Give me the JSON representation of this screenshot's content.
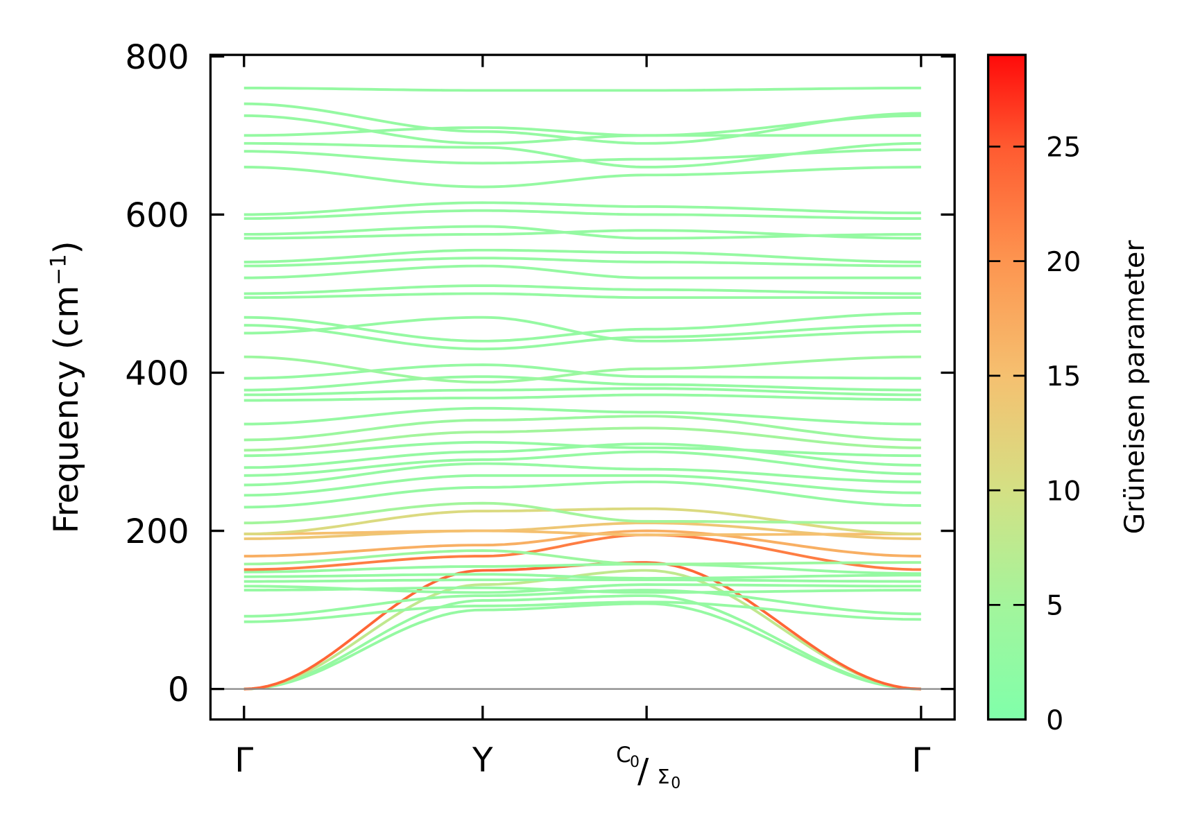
{
  "chart_data": {
    "type": "line",
    "title": "",
    "ylabel": {
      "main": "Frequency (cm",
      "sup": "−1",
      "close": ")"
    },
    "xlabel": "",
    "ylim": [
      -38,
      842
    ],
    "yticks": [
      0,
      200,
      400,
      600,
      800
    ],
    "ytick_labels": [
      "0",
      "200",
      "400",
      "600",
      "800"
    ],
    "xticks": [
      {
        "label": "Γ",
        "pos": 0
      },
      {
        "label": "Y",
        "pos": 1
      },
      {
        "label": "C0/Σ0",
        "main1": "C",
        "sub1": "0",
        "slash": "/",
        "main2": "Σ",
        "sub2": "0",
        "pos": 2
      },
      {
        "label": "Γ",
        "pos": 3
      }
    ],
    "grid": false,
    "zero_line": 0,
    "colorbar": {
      "label": "Grüneisen parameter",
      "range": [
        0,
        29
      ],
      "ticks": [
        0,
        5,
        10,
        15,
        20,
        25
      ],
      "tick_labels": [
        "0",
        "5",
        "10",
        "15",
        "20",
        "25"
      ],
      "colors": [
        "#80ffaa",
        "#a3f59c",
        "#d4e084",
        "#f5c070",
        "#fd9550",
        "#ff5a30",
        "#ff0a0a"
      ],
      "stops": [
        0,
        5,
        10,
        15,
        20,
        25,
        29
      ]
    },
    "bands_description": "frequency (cm-1) at Γ, Y, C0/Σ0, Γ with Grüneisen parameter",
    "series": [
      {
        "f": [
          0,
          100,
          108,
          0
        ],
        "g": 3
      },
      {
        "f": [
          0,
          112,
          118,
          0
        ],
        "g": 3
      },
      {
        "f": [
          0,
          132,
          150,
          0
        ],
        "g": 8
      },
      {
        "f": [
          0,
          150,
          160,
          0
        ],
        "g": 24
      },
      {
        "f": [
          85,
          105,
          110,
          88
        ],
        "g": 3
      },
      {
        "f": [
          92,
          118,
          125,
          95
        ],
        "g": 3
      },
      {
        "f": [
          125,
          128,
          122,
          125
        ],
        "g": 3
      },
      {
        "f": [
          130,
          122,
          132,
          130
        ],
        "g": 3
      },
      {
        "f": [
          136,
          138,
          138,
          136
        ],
        "g": 3
      },
      {
        "f": [
          142,
          145,
          140,
          144
        ],
        "g": 3
      },
      {
        "f": [
          148,
          155,
          158,
          146
        ],
        "g": 3
      },
      {
        "f": [
          151,
          168,
          195,
          151
        ],
        "g": 22
      },
      {
        "f": [
          158,
          175,
          158,
          160
        ],
        "g": 4
      },
      {
        "f": [
          168,
          182,
          200,
          168
        ],
        "g": 17
      },
      {
        "f": [
          190,
          200,
          210,
          190
        ],
        "g": 14
      },
      {
        "f": [
          196,
          200,
          195,
          196
        ],
        "g": 15
      },
      {
        "f": [
          196,
          225,
          228,
          196
        ],
        "g": 11
      },
      {
        "f": [
          210,
          235,
          212,
          210
        ],
        "g": 5
      },
      {
        "f": [
          230,
          255,
          262,
          232
        ],
        "g": 3
      },
      {
        "f": [
          245,
          270,
          270,
          248
        ],
        "g": 3
      },
      {
        "f": [
          258,
          285,
          278,
          262
        ],
        "g": 3
      },
      {
        "f": [
          270,
          290,
          300,
          272
        ],
        "g": 3
      },
      {
        "f": [
          280,
          300,
          310,
          283
        ],
        "g": 3
      },
      {
        "f": [
          295,
          312,
          305,
          295
        ],
        "g": 3
      },
      {
        "f": [
          302,
          325,
          330,
          305
        ],
        "g": 5
      },
      {
        "f": [
          315,
          340,
          345,
          315
        ],
        "g": 4
      },
      {
        "f": [
          335,
          355,
          350,
          335
        ],
        "g": 3
      },
      {
        "f": [
          365,
          368,
          372,
          366
        ],
        "g": 3
      },
      {
        "f": [
          372,
          378,
          380,
          372
        ],
        "g": 3
      },
      {
        "f": [
          378,
          395,
          385,
          378
        ],
        "g": 3
      },
      {
        "f": [
          393,
          410,
          395,
          393
        ],
        "g": 3
      },
      {
        "f": [
          420,
          388,
          405,
          420
        ],
        "g": 4
      },
      {
        "f": [
          450,
          470,
          440,
          452
        ],
        "g": 3
      },
      {
        "f": [
          460,
          430,
          445,
          460
        ],
        "g": 3
      },
      {
        "f": [
          470,
          440,
          455,
          475
        ],
        "g": 3
      },
      {
        "f": [
          495,
          500,
          495,
          495
        ],
        "g": 3
      },
      {
        "f": [
          500,
          510,
          505,
          500
        ],
        "g": 3
      },
      {
        "f": [
          520,
          535,
          520,
          520
        ],
        "g": 3
      },
      {
        "f": [
          535,
          545,
          540,
          535
        ],
        "g": 3
      },
      {
        "f": [
          540,
          555,
          552,
          540
        ],
        "g": 3
      },
      {
        "f": [
          570,
          575,
          580,
          570
        ],
        "g": 3
      },
      {
        "f": [
          575,
          585,
          570,
          575
        ],
        "g": 3
      },
      {
        "f": [
          595,
          605,
          600,
          595
        ],
        "g": 3
      },
      {
        "f": [
          600,
          615,
          610,
          602
        ],
        "g": 3
      },
      {
        "f": [
          660,
          635,
          650,
          660
        ],
        "g": 3
      },
      {
        "f": [
          680,
          665,
          670,
          682
        ],
        "g": 3
      },
      {
        "f": [
          690,
          685,
          660,
          690
        ],
        "g": 3
      },
      {
        "f": [
          700,
          710,
          700,
          700
        ],
        "g": 3
      },
      {
        "f": [
          725,
          690,
          700,
          725
        ],
        "g": 3
      },
      {
        "f": [
          740,
          705,
          690,
          728
        ],
        "g": 3
      },
      {
        "f": [
          760,
          757,
          757,
          760
        ],
        "g": 3
      }
    ]
  }
}
